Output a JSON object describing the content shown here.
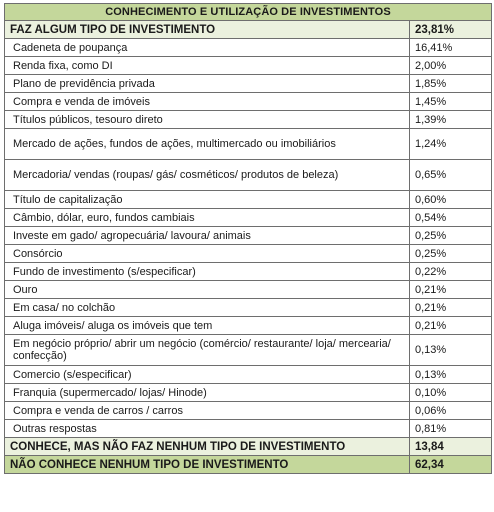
{
  "title": "CONHECIMENTO E UTILIZAÇÃO DE INVESTIMENTOS",
  "invest_group": {
    "label": "FAZ ALGUM TIPO DE INVESTIMENTO",
    "value": "23,81%"
  },
  "items": [
    {
      "label": "Cadeneta de poupança",
      "value": "16,41%"
    },
    {
      "label": "Renda fixa, como DI",
      "value": "2,00%"
    },
    {
      "label": "Plano de previdência privada",
      "value": "1,85%"
    },
    {
      "label": "Compra e venda de imóveis",
      "value": "1,45%"
    },
    {
      "label": "Títulos públicos, tesouro direto",
      "value": "1,39%"
    },
    {
      "label": "Mercado de ações, fundos de ações, multimercado ou imobiliários",
      "value": "1,24%"
    },
    {
      "label": "Mercadoria/ vendas (roupas/ gás/ cosméticos/ produtos de beleza)",
      "value": "0,65%"
    },
    {
      "label": "Título de capitalização",
      "value": "0,60%"
    },
    {
      "label": "Câmbio, dólar, euro, fundos cambiais",
      "value": "0,54%"
    },
    {
      "label": "Investe em gado/ agropecuária/ lavoura/ animais",
      "value": "0,25%"
    },
    {
      "label": "Consórcio",
      "value": "0,25%"
    },
    {
      "label": "Fundo de investimento (s/especificar)",
      "value": "0,22%"
    },
    {
      "label": "Ouro",
      "value": "0,21%"
    },
    {
      "label": "Em casa/ no colchão",
      "value": "0,21%"
    },
    {
      "label": "Aluga imóveis/ aluga os imóveis que tem",
      "value": "0,21%"
    },
    {
      "label": "Em negócio próprio/ abrir um negócio (comércio/ restaurante/ loja/ mercearia/ confecção)",
      "value": "0,13%"
    },
    {
      "label": "Comercio (s/especificar)",
      "value": "0,13%"
    },
    {
      "label": "Franquia (supermercado/ lojas/ Hinode)",
      "value": "0,10%"
    },
    {
      "label": "Compra e venda de carros / carros",
      "value": "0,06%"
    },
    {
      "label": "Outras respostas",
      "value": "0,81%"
    }
  ],
  "knows_not_invest": {
    "label": "CONHECE, MAS NÃO FAZ NENHUM TIPO DE INVESTIMENTO",
    "value": "13,84"
  },
  "not_know": {
    "label": "NÃO CONHECE NENHUM TIPO DE INVESTIMENTO",
    "value": "62,34"
  },
  "colors": {
    "header_green": "#c4d79b",
    "light_green": "#ebf1de",
    "border": "#6e6e6e"
  }
}
